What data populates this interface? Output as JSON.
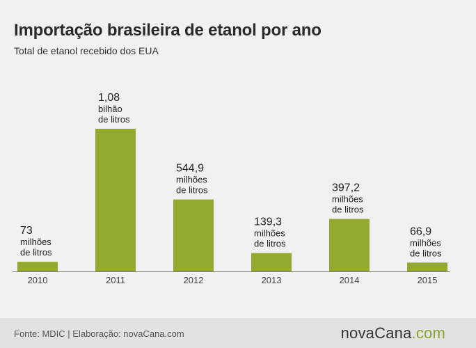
{
  "title": "Importação brasileira de etanol por ano",
  "subtitle": "Total de etanol recebido dos EUA",
  "footer": {
    "source": "Fonte: MDIC | Elaboração: novaCana.com",
    "brand_main": "novaCana",
    "brand_suffix": ".com"
  },
  "colors": {
    "bar": "#93a92f",
    "background": "#f1f1f1",
    "footer": "#e2e2e2",
    "brand_accent": "#8aa52c"
  },
  "chart_data": {
    "type": "bar",
    "title": "Importação brasileira de etanol por ano",
    "subtitle": "Total de etanol recebido dos EUA",
    "categories": [
      "2010",
      "2011",
      "2012",
      "2013",
      "2014",
      "2015"
    ],
    "values": [
      73,
      1080,
      544.9,
      139.3,
      397.2,
      66.9
    ],
    "unit": "milhões de litros",
    "ylim": [
      0,
      1080
    ],
    "grid": false,
    "legend": "none",
    "data_labels": [
      {
        "value": "73",
        "unit_line1": "milhões",
        "unit_line2": "de litros"
      },
      {
        "value": "1,08",
        "unit_line1": "bilhão",
        "unit_line2": "de litros"
      },
      {
        "value": "544,9",
        "unit_line1": "milhões",
        "unit_line2": "de litros"
      },
      {
        "value": "139,3",
        "unit_line1": "milhões",
        "unit_line2": "de litros"
      },
      {
        "value": "397,2",
        "unit_line1": "milhões",
        "unit_line2": "de litros"
      },
      {
        "value": "66,9",
        "unit_line1": "milhões",
        "unit_line2": "de litros"
      }
    ]
  }
}
